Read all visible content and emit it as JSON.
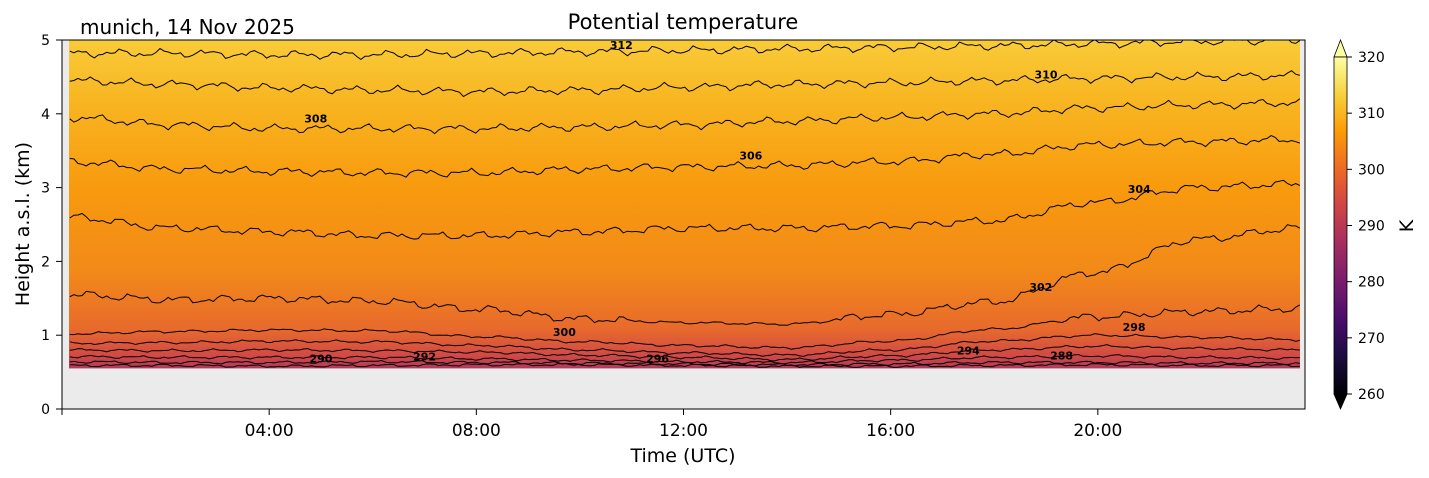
{
  "chart_data": {
    "type": "heatmap",
    "title": "Potential temperature",
    "subtitle": "munich, 14 Nov 2025",
    "xlabel": "Time (UTC)",
    "ylabel": "Height a.s.l. (km)",
    "x_range_hours": [
      0,
      24
    ],
    "x_ticks": [
      {
        "hour": 4,
        "label": "04:00"
      },
      {
        "hour": 8,
        "label": "08:00"
      },
      {
        "hour": 12,
        "label": "12:00"
      },
      {
        "hour": 16,
        "label": "16:00"
      },
      {
        "hour": 20,
        "label": "20:00"
      }
    ],
    "y_range_km": [
      0,
      5
    ],
    "y_ticks": [
      {
        "value": 0,
        "label": "0"
      },
      {
        "value": 1,
        "label": "1"
      },
      {
        "value": 2,
        "label": "2"
      },
      {
        "value": 3,
        "label": "3"
      },
      {
        "value": 4,
        "label": "4"
      },
      {
        "value": 5,
        "label": "5"
      }
    ],
    "data_bottom_km": 0.55,
    "no_data_color": "#ebebeb",
    "colorbar": {
      "label": "K",
      "range": [
        260,
        320
      ],
      "extend": "both",
      "colormap": "inferno",
      "ticks": [
        "260",
        "270",
        "280",
        "290",
        "300",
        "310",
        "320"
      ]
    },
    "colormap_stops": [
      "#000004",
      "#1b0c41",
      "#4a0c6b",
      "#781c6d",
      "#a52c60",
      "#cf4446",
      "#ed6925",
      "#fb9b06",
      "#f7d13d",
      "#fcffa4"
    ],
    "contours": [
      {
        "level": 290,
        "label": "290",
        "heights_km": [
          0.59,
          0.59,
          0.58,
          0.59,
          0.6,
          0.6,
          0.59,
          0.58,
          0.58,
          0.59,
          0.6,
          0.59,
          0.59
        ]
      },
      {
        "level": 292,
        "label": "292",
        "heights_km": [
          0.64,
          0.63,
          0.63,
          0.64,
          0.63,
          0.62,
          0.61,
          0.6,
          0.61,
          0.63,
          0.63,
          0.62,
          0.62
        ]
      },
      {
        "level": 294,
        "label": "294",
        "heights_km": [
          0.71,
          0.7,
          0.7,
          0.7,
          0.68,
          0.66,
          0.64,
          0.63,
          0.66,
          0.7,
          0.72,
          0.7,
          0.69
        ]
      },
      {
        "level": 296,
        "label": "296",
        "heights_km": [
          0.8,
          0.79,
          0.8,
          0.79,
          0.77,
          0.73,
          0.7,
          0.67,
          0.72,
          0.8,
          0.85,
          0.82,
          0.8
        ]
      },
      {
        "level": 298,
        "label": "298",
        "heights_km": [
          0.89,
          0.9,
          0.92,
          0.91,
          0.86,
          0.8,
          0.76,
          0.73,
          0.8,
          0.92,
          1.0,
          0.97,
          0.94
        ]
      },
      {
        "level": 300,
        "label": "300",
        "heights_km": [
          1.02,
          1.05,
          1.07,
          1.06,
          0.98,
          0.91,
          0.86,
          0.83,
          0.92,
          1.08,
          1.25,
          1.32,
          1.36
        ]
      },
      {
        "level": 302,
        "label": "302",
        "heights_km": [
          1.55,
          1.48,
          1.5,
          1.46,
          1.35,
          1.22,
          1.17,
          1.15,
          1.28,
          1.45,
          1.85,
          2.3,
          2.45
        ]
      },
      {
        "level": 304,
        "label": "304",
        "heights_km": [
          2.6,
          2.45,
          2.4,
          2.35,
          2.35,
          2.4,
          2.45,
          2.45,
          2.48,
          2.55,
          2.8,
          3.0,
          3.05
        ]
      },
      {
        "level": 306,
        "label": "306",
        "heights_km": [
          3.35,
          3.25,
          3.22,
          3.2,
          3.2,
          3.25,
          3.28,
          3.3,
          3.35,
          3.45,
          3.58,
          3.62,
          3.65
        ]
      },
      {
        "level": 308,
        "label": "308",
        "heights_km": [
          3.95,
          3.85,
          3.8,
          3.8,
          3.8,
          3.82,
          3.85,
          3.9,
          3.95,
          4.0,
          4.08,
          4.12,
          4.15
        ]
      },
      {
        "level": 310,
        "label": "310",
        "heights_km": [
          4.45,
          4.4,
          4.35,
          4.32,
          4.3,
          4.32,
          4.36,
          4.4,
          4.42,
          4.45,
          4.48,
          4.5,
          4.52
        ]
      },
      {
        "level": 312,
        "label": "312",
        "heights_km": [
          4.82,
          4.82,
          4.8,
          4.8,
          4.82,
          4.84,
          4.86,
          4.88,
          4.9,
          4.92,
          4.95,
          4.98,
          5.0
        ]
      }
    ],
    "contour_labels": [
      {
        "text": "290",
        "hour": 5.0,
        "km": 0.63
      },
      {
        "text": "292",
        "hour": 7.0,
        "km": 0.66
      },
      {
        "text": "296",
        "hour": 11.5,
        "km": 0.63
      },
      {
        "text": "294",
        "hour": 17.5,
        "km": 0.74
      },
      {
        "text": "288",
        "hour": 19.3,
        "km": 0.67
      },
      {
        "text": "298",
        "hour": 20.7,
        "km": 1.06
      },
      {
        "text": "300",
        "hour": 9.7,
        "km": 0.99
      },
      {
        "text": "302",
        "hour": 18.9,
        "km": 1.6
      },
      {
        "text": "304",
        "hour": 20.8,
        "km": 2.93
      },
      {
        "text": "306",
        "hour": 13.3,
        "km": 3.38
      },
      {
        "text": "308",
        "hour": 4.9,
        "km": 3.88
      },
      {
        "text": "310",
        "hour": 19.0,
        "km": 4.48
      },
      {
        "text": "312",
        "hour": 10.8,
        "km": 4.88
      }
    ]
  }
}
